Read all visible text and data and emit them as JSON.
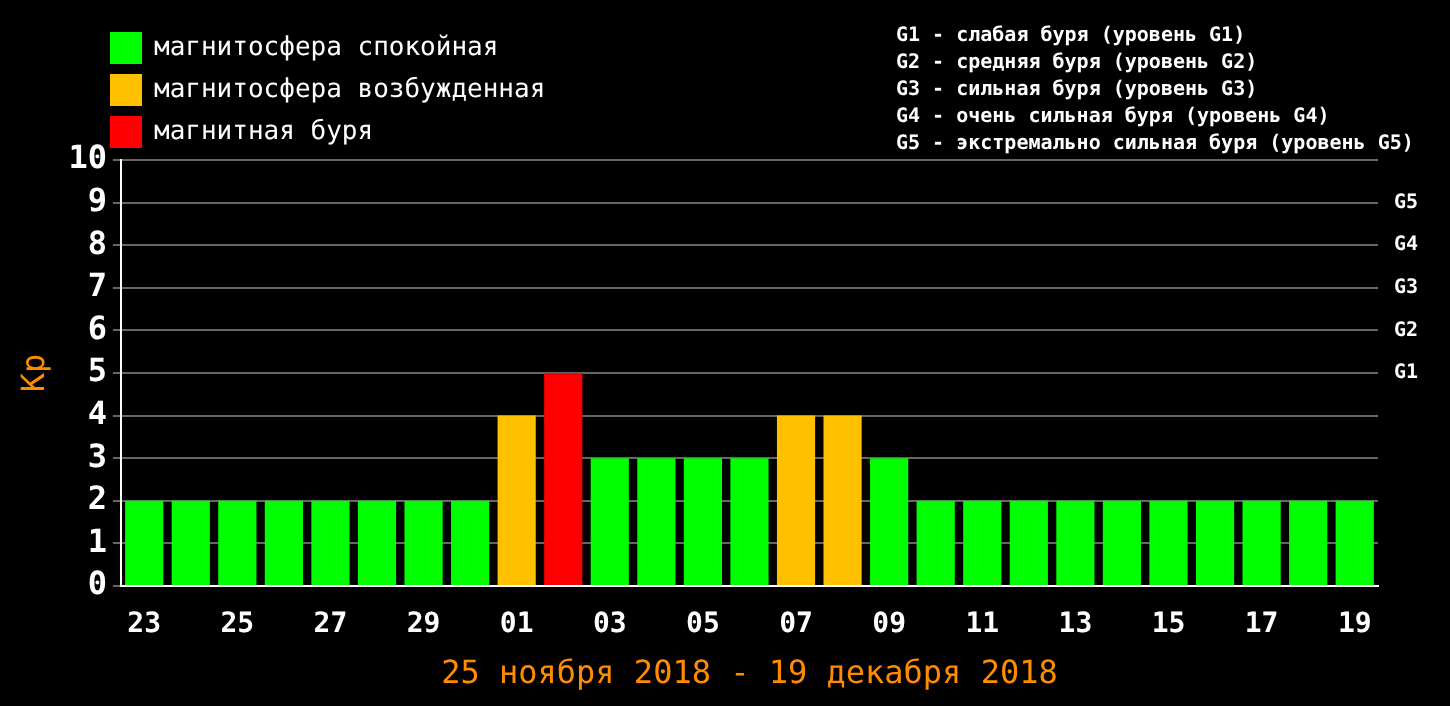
{
  "chart_data": {
    "type": "bar",
    "stacked": true,
    "xlabel": "25 ноября 2018 - 19 декабря 2018",
    "ylabel": "Kp",
    "categories": [
      "23",
      null,
      "25",
      null,
      "27",
      null,
      "29",
      null,
      "01",
      null,
      "03",
      null,
      "05",
      null,
      "07",
      null,
      "09",
      null,
      "11",
      null,
      "13",
      null,
      "15",
      null,
      "17",
      null,
      "19"
    ],
    "series": [
      {
        "name": "магнитосфера спокойная",
        "color": "#00ff00",
        "values": [
          2,
          2,
          2,
          2,
          2,
          2,
          2,
          2,
          null,
          null,
          3,
          3,
          3,
          3,
          null,
          null,
          3,
          2,
          2,
          2,
          2,
          2,
          2,
          2,
          2,
          2,
          2
        ]
      },
      {
        "name": "магнитосфера возбужденная",
        "color": "#ffc000",
        "values": [
          null,
          null,
          null,
          null,
          null,
          null,
          null,
          null,
          4,
          null,
          null,
          null,
          null,
          null,
          4,
          4,
          null,
          null,
          null,
          null,
          null,
          null,
          null,
          null,
          null,
          null,
          null
        ]
      },
      {
        "name": "магнитная буря",
        "color": "#ff0000",
        "values": [
          null,
          null,
          null,
          null,
          null,
          null,
          null,
          null,
          null,
          5,
          null,
          null,
          null,
          null,
          null,
          null,
          null,
          null,
          null,
          null,
          null,
          null,
          null,
          null,
          null,
          null,
          null
        ]
      }
    ],
    "ylim": [
      0,
      10
    ],
    "yticks": [
      0,
      1,
      2,
      3,
      4,
      5,
      6,
      7,
      8,
      9,
      10
    ],
    "grid": "y",
    "legend": "top left",
    "annotations": [
      "G1 - слабая буря (уровень G1)",
      "G2 - средняя буря (уровень G2)",
      "G3 - сильная буря (уровень G3)",
      "G4 - очень сильная буря (уровень G4)",
      "G5 - экстремально сильная буря (уровень G5)",
      "G5",
      "G4",
      "G3",
      "G2",
      "G1"
    ]
  }
}
